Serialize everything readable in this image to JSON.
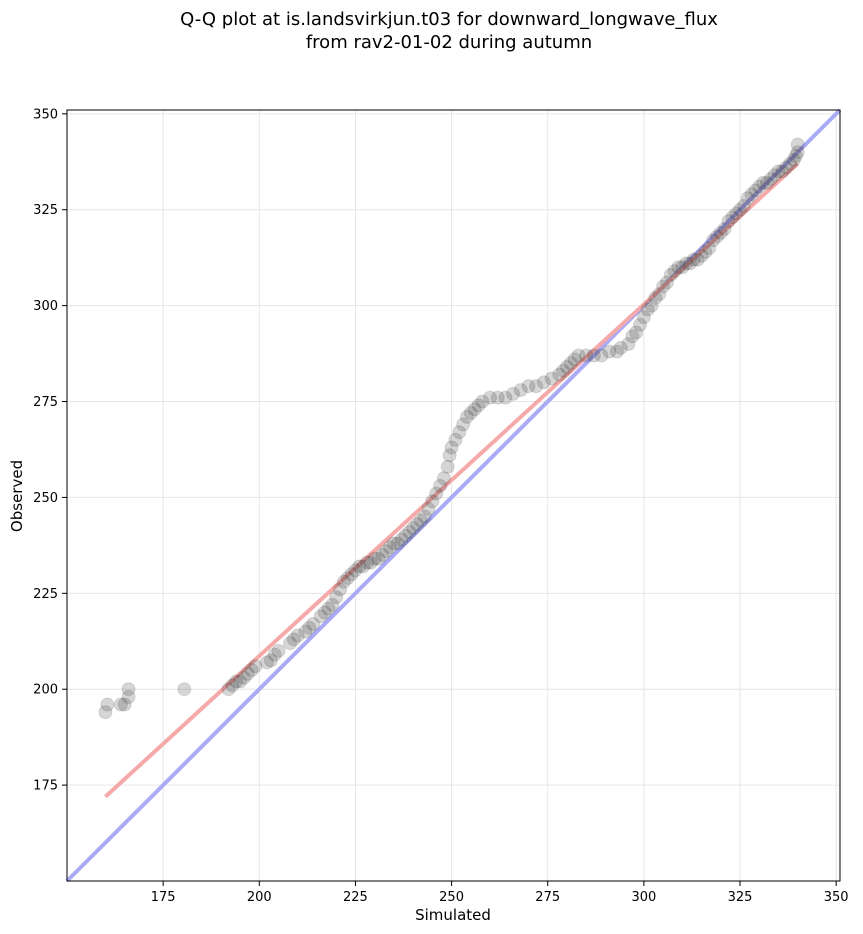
{
  "chart_data": {
    "type": "scatter",
    "title_line1": "Q-Q plot at is.landsvirkjun.t03 for downward_longwave_flux",
    "title_line2": "from rav2-01-02 during autumn",
    "xlabel": "Simulated",
    "ylabel": "Observed",
    "xlim": [
      150,
      351
    ],
    "ylim": [
      150,
      351
    ],
    "xticks": [
      175,
      200,
      225,
      250,
      275,
      300,
      325,
      350
    ],
    "yticks": [
      175,
      200,
      225,
      250,
      275,
      300,
      325,
      350
    ],
    "grid": true,
    "reference_line": {
      "from": [
        150,
        150
      ],
      "to": [
        351,
        351
      ],
      "color": "#aaaaf5"
    },
    "fit_line": {
      "from": [
        160,
        172
      ],
      "to": [
        340,
        337
      ],
      "color": "#f5a9a9"
    },
    "points_color": "#333333",
    "quantiles": [
      [
        160,
        194
      ],
      [
        160.5,
        196
      ],
      [
        164,
        196
      ],
      [
        165,
        196
      ],
      [
        166,
        198
      ],
      [
        166,
        200
      ],
      [
        180.5,
        200
      ],
      [
        192,
        200
      ],
      [
        193,
        201
      ],
      [
        194,
        202
      ],
      [
        195,
        202
      ],
      [
        196,
        203
      ],
      [
        197,
        204
      ],
      [
        198,
        205
      ],
      [
        199,
        206
      ],
      [
        202,
        207
      ],
      [
        203,
        207.5
      ],
      [
        204,
        209
      ],
      [
        205,
        210
      ],
      [
        208,
        212
      ],
      [
        209,
        213
      ],
      [
        210,
        214
      ],
      [
        212,
        215
      ],
      [
        213,
        216
      ],
      [
        214,
        217
      ],
      [
        216,
        219
      ],
      [
        217,
        220
      ],
      [
        218,
        221
      ],
      [
        219,
        222
      ],
      [
        220,
        224
      ],
      [
        221,
        226
      ],
      [
        222,
        228
      ],
      [
        223,
        229
      ],
      [
        224,
        230
      ],
      [
        225,
        231
      ],
      [
        226,
        232
      ],
      [
        227,
        232
      ],
      [
        228,
        233
      ],
      [
        229,
        233
      ],
      [
        230,
        234
      ],
      [
        231,
        234
      ],
      [
        232,
        235
      ],
      [
        233,
        236
      ],
      [
        234,
        237
      ],
      [
        235,
        238
      ],
      [
        236,
        238
      ],
      [
        237,
        239
      ],
      [
        238,
        240
      ],
      [
        239,
        241
      ],
      [
        240,
        242
      ],
      [
        241,
        243
      ],
      [
        242,
        244
      ],
      [
        243,
        245
      ],
      [
        244,
        247
      ],
      [
        245,
        249
      ],
      [
        246,
        251
      ],
      [
        247,
        253
      ],
      [
        248,
        255
      ],
      [
        249,
        258
      ],
      [
        249.5,
        261
      ],
      [
        250,
        263
      ],
      [
        251,
        265
      ],
      [
        252,
        267
      ],
      [
        253,
        269
      ],
      [
        254,
        271
      ],
      [
        255,
        272
      ],
      [
        256,
        273
      ],
      [
        257,
        274
      ],
      [
        258,
        275
      ],
      [
        260,
        276
      ],
      [
        262,
        276
      ],
      [
        264,
        276
      ],
      [
        266,
        277
      ],
      [
        268,
        278
      ],
      [
        270,
        279
      ],
      [
        272,
        279
      ],
      [
        274,
        280
      ],
      [
        276,
        281
      ],
      [
        278,
        282
      ],
      [
        279,
        283
      ],
      [
        280,
        284
      ],
      [
        281,
        285
      ],
      [
        282,
        286
      ],
      [
        283,
        287
      ],
      [
        285,
        287
      ],
      [
        287,
        287
      ],
      [
        289,
        287
      ],
      [
        291,
        288
      ],
      [
        293,
        288
      ],
      [
        294,
        289
      ],
      [
        296,
        290
      ],
      [
        297,
        292
      ],
      [
        298,
        293
      ],
      [
        299,
        295
      ],
      [
        300,
        297
      ],
      [
        301,
        299
      ],
      [
        302,
        300
      ],
      [
        303,
        302
      ],
      [
        304,
        303
      ],
      [
        305,
        305
      ],
      [
        306,
        306
      ],
      [
        307,
        308
      ],
      [
        308,
        309
      ],
      [
        309,
        310
      ],
      [
        310,
        310
      ],
      [
        311,
        311
      ],
      [
        312,
        311
      ],
      [
        313,
        312
      ],
      [
        314,
        312
      ],
      [
        315,
        313
      ],
      [
        316,
        314
      ],
      [
        317,
        315
      ],
      [
        318,
        317
      ],
      [
        319,
        318
      ],
      [
        320,
        319
      ],
      [
        321,
        320
      ],
      [
        322,
        322
      ],
      [
        323,
        323
      ],
      [
        324,
        324
      ],
      [
        325,
        325
      ],
      [
        326,
        326
      ],
      [
        327,
        328
      ],
      [
        328,
        329
      ],
      [
        329,
        330
      ],
      [
        330,
        331
      ],
      [
        331,
        332
      ],
      [
        332,
        332
      ],
      [
        333,
        333
      ],
      [
        334,
        334
      ],
      [
        335,
        335
      ],
      [
        336,
        335
      ],
      [
        337,
        336
      ],
      [
        338,
        337
      ],
      [
        339,
        338
      ],
      [
        339.5,
        339
      ],
      [
        340,
        340
      ],
      [
        340,
        342
      ]
    ]
  }
}
